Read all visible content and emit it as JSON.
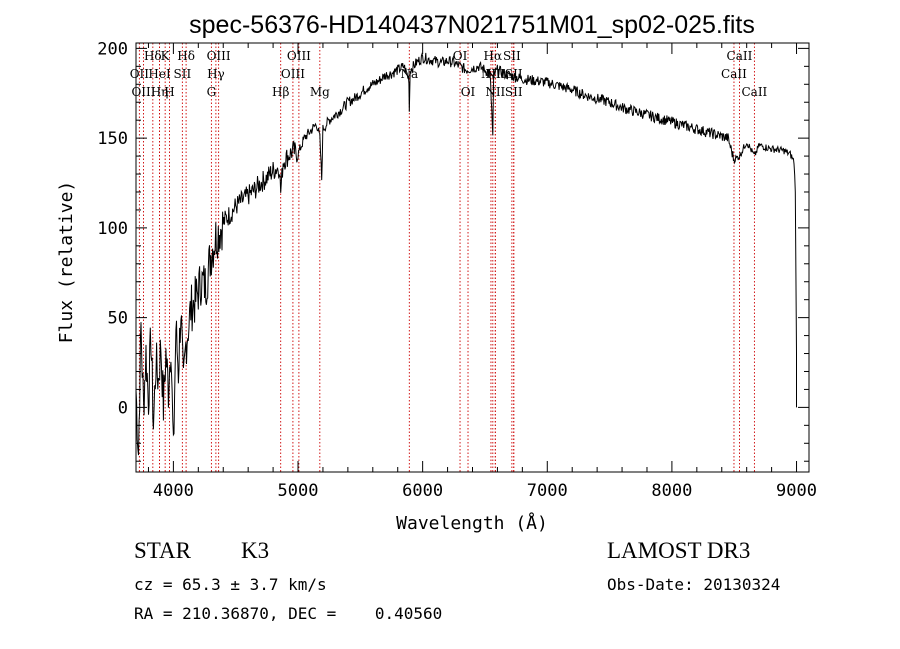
{
  "chart_data": {
    "type": "line",
    "title": "spec-56376-HD140437N021751M01_sp02-025.fits",
    "xlabel": "Wavelength (Å)",
    "ylabel": "Flux (relative)",
    "xlim": [
      3700,
      9100
    ],
    "ylim": [
      -36,
      203
    ],
    "xticks": [
      4000,
      5000,
      6000,
      7000,
      8000,
      9000
    ],
    "xtick_labels": [
      "4000",
      "5000",
      "6000",
      "7000",
      "8000",
      "9000"
    ],
    "yticks": [
      0,
      50,
      100,
      150,
      200
    ],
    "ytick_labels": [
      "0",
      "50",
      "100",
      "150",
      "200"
    ],
    "grid": false,
    "series": [
      {
        "name": "flux",
        "x": [
          3700,
          3720,
          3740,
          3760,
          3780,
          3800,
          3820,
          3840,
          3860,
          3880,
          3900,
          3920,
          3940,
          3960,
          3980,
          4000,
          4020,
          4040,
          4060,
          4080,
          4100,
          4140,
          4180,
          4220,
          4260,
          4300,
          4340,
          4380,
          4420,
          4460,
          4500,
          4550,
          4600,
          4650,
          4700,
          4750,
          4800,
          4850,
          4861,
          4880,
          4920,
          4960,
          5000,
          5050,
          5100,
          5150,
          5175,
          5190,
          5200,
          5250,
          5300,
          5350,
          5400,
          5450,
          5500,
          5550,
          5600,
          5650,
          5700,
          5750,
          5800,
          5850,
          5890,
          5893,
          5900,
          5950,
          6000,
          6050,
          6100,
          6150,
          6200,
          6250,
          6300,
          6350,
          6400,
          6450,
          6500,
          6540,
          6555,
          6563,
          6570,
          6600,
          6650,
          6700,
          6750,
          6800,
          6900,
          7000,
          7100,
          7200,
          7300,
          7400,
          7500,
          7600,
          7700,
          7800,
          7900,
          8000,
          8100,
          8200,
          8300,
          8400,
          8450,
          8498,
          8542,
          8600,
          8662,
          8700,
          8800,
          8900,
          8950,
          8980,
          8990,
          9000,
          9000
        ],
        "y": [
          10,
          -25,
          45,
          0,
          30,
          5,
          40,
          -10,
          25,
          15,
          35,
          0,
          30,
          10,
          38,
          -28,
          45,
          20,
          55,
          10,
          35,
          55,
          60,
          70,
          68,
          85,
          95,
          100,
          105,
          108,
          112,
          115,
          118,
          121,
          125,
          128,
          132,
          134,
          120,
          137,
          140,
          143,
          141,
          150,
          154,
          158,
          150,
          127,
          155,
          160,
          163,
          166,
          170,
          172,
          175,
          178,
          180,
          182,
          185,
          186,
          188,
          190,
          183,
          165,
          188,
          192,
          195,
          194,
          193,
          192,
          193,
          192,
          190,
          188,
          189,
          190,
          188,
          186,
          165,
          150,
          185,
          188,
          186,
          185,
          184,
          183,
          182,
          181,
          179,
          177,
          174,
          172,
          170,
          167,
          165,
          163,
          161,
          159,
          157,
          155,
          153,
          151,
          150,
          138,
          140,
          148,
          140,
          146,
          144,
          143,
          141,
          137,
          120,
          30,
          0
        ]
      }
    ],
    "line_markers": [
      {
        "label": "Hδ",
        "wavelength": 3835,
        "row": 1
      },
      {
        "label": "OII",
        "wavelength": 3727,
        "row": 2
      },
      {
        "label": "OIII",
        "wavelength": 3760,
        "row": 3
      },
      {
        "label": "K",
        "wavelength": 3934,
        "row": 1
      },
      {
        "label": "HeI",
        "wavelength": 3889,
        "row": 2
      },
      {
        "label": "Hη",
        "wavelength": 3889,
        "row": 3
      },
      {
        "label": "H",
        "wavelength": 3969,
        "row": 3
      },
      {
        "label": "Hδ",
        "wavelength": 4102,
        "row": 1
      },
      {
        "label": "SII",
        "wavelength": 4072,
        "row": 2
      },
      {
        "label": "OIII",
        "wavelength": 4363,
        "row": 1
      },
      {
        "label": "Hγ",
        "wavelength": 4341,
        "row": 2
      },
      {
        "label": "G",
        "wavelength": 4305,
        "row": 3
      },
      {
        "label": "OIII",
        "wavelength": 5007,
        "row": 1
      },
      {
        "label": "OIII",
        "wavelength": 4959,
        "row": 2
      },
      {
        "label": "Hβ",
        "wavelength": 4861,
        "row": 3
      },
      {
        "label": "Mg",
        "wavelength": 5175,
        "row": 3
      },
      {
        "label": "Na",
        "wavelength": 5893,
        "row": 2
      },
      {
        "label": "OI",
        "wavelength": 6300,
        "row": 1
      },
      {
        "label": "OI",
        "wavelength": 6364,
        "row": 3
      },
      {
        "label": "Hα",
        "wavelength": 6563,
        "row": 1
      },
      {
        "label": "SII",
        "wavelength": 6716,
        "row": 1
      },
      {
        "label": "NII",
        "wavelength": 6548,
        "row": 2
      },
      {
        "label": "NII",
        "wavelength": 6583,
        "row": 2
      },
      {
        "label": "SII",
        "wavelength": 6731,
        "row": 2
      },
      {
        "label": "NII",
        "wavelength": 6583,
        "row": 3
      },
      {
        "label": "SII",
        "wavelength": 6731,
        "row": 3
      },
      {
        "label": "CaII",
        "wavelength": 8542,
        "row": 1
      },
      {
        "label": "CaII",
        "wavelength": 8498,
        "row": 2
      },
      {
        "label": "CaII",
        "wavelength": 8662,
        "row": 3
      }
    ]
  },
  "info": {
    "object_class": "STAR",
    "subclass": "K3",
    "redshift": "cz = 65.3 ± 3.7 km/s",
    "coords": "RA = 210.36870, DEC =    0.40560",
    "survey": "LAMOST DR3",
    "obs_date": "Obs-Date: 20130324"
  },
  "colors": {
    "line": "#000000",
    "marker": "#cc0000",
    "background": "#ffffff"
  }
}
